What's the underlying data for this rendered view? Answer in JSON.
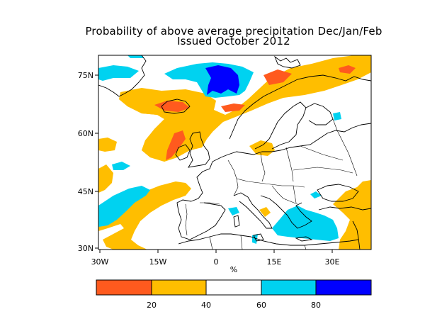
{
  "title": {
    "line1": "Probability of above average precipitation Dec/Jan/Feb",
    "line2": "Issued October 2012"
  },
  "map": {
    "lat_ticks": [
      "75N",
      "60N",
      "45N",
      "30N"
    ],
    "lon_ticks": [
      "30W",
      "15W",
      "0",
      "15E",
      "30E"
    ],
    "x_unit_label": "%",
    "colors": {
      "prob_0_20": "#ff5a1e",
      "prob_20_40": "#ffbe00",
      "prob_40_60": "#ffffff",
      "prob_60_80": "#00d2f0",
      "prob_80_100": "#0000ff"
    }
  },
  "colorbar": {
    "labels": [
      "20",
      "40",
      "60",
      "80"
    ],
    "colors": [
      "#ff5a1e",
      "#ffbe00",
      "#ffffff",
      "#00d2f0",
      "#0000ff"
    ]
  }
}
